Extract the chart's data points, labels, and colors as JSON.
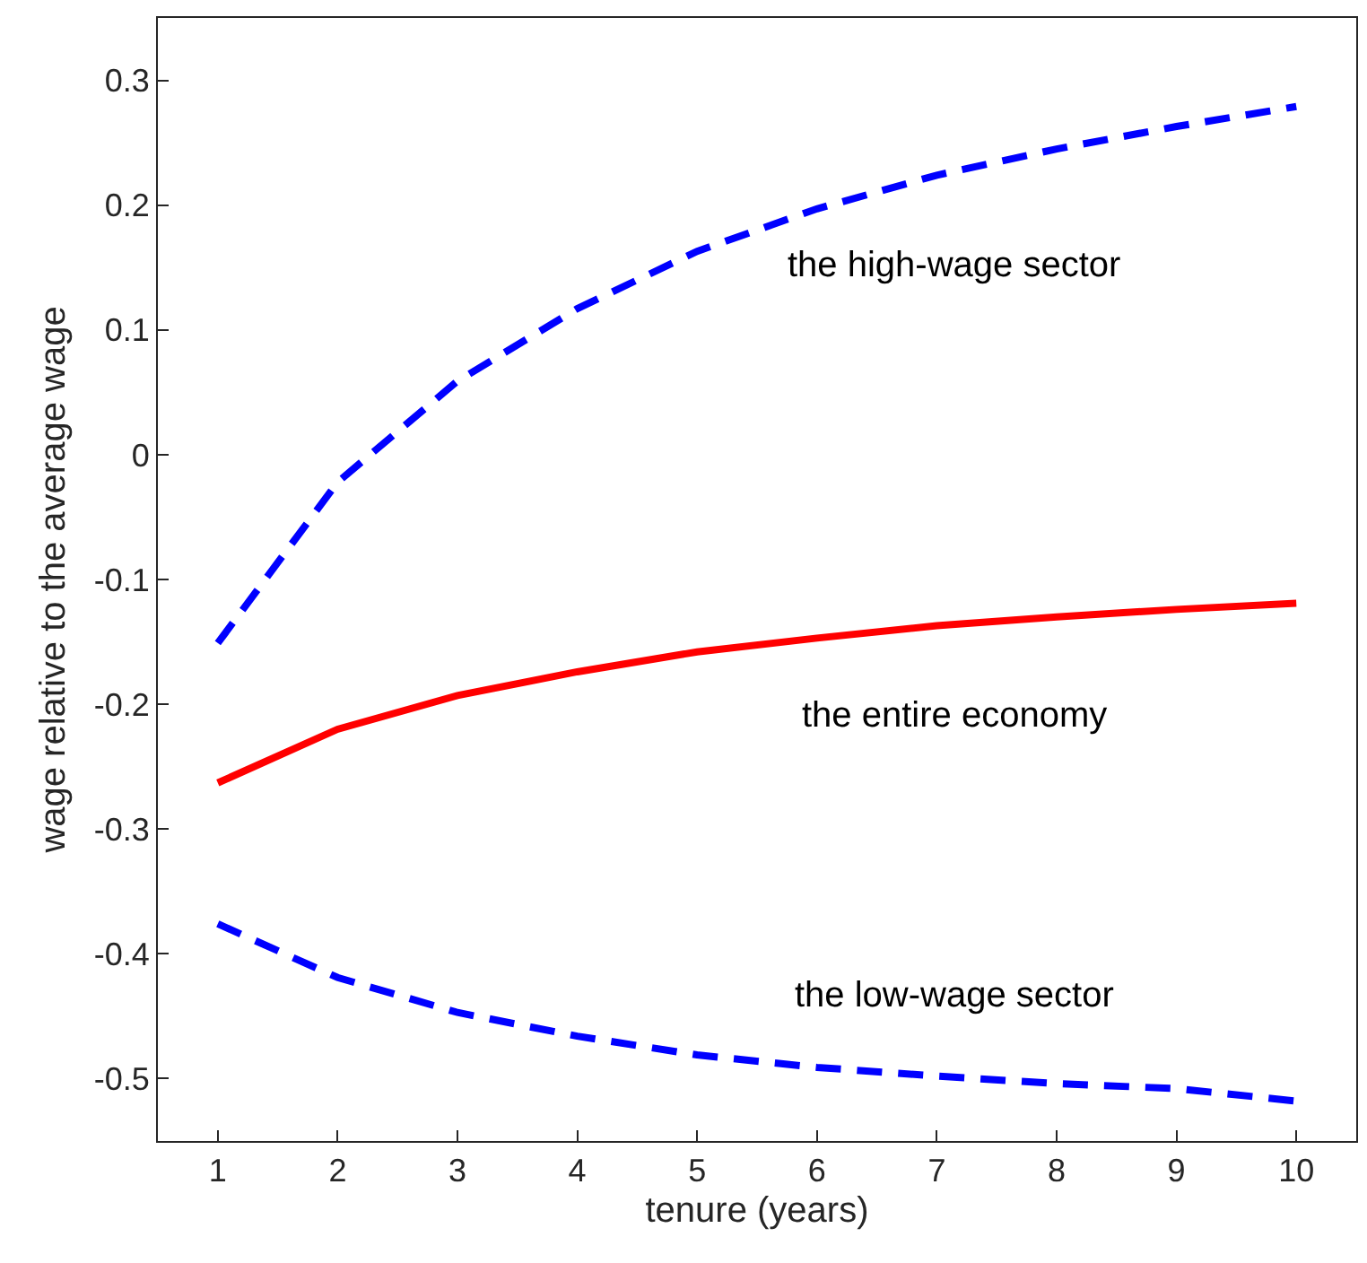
{
  "chart_data": {
    "type": "line",
    "xlabel": "tenure (years)",
    "ylabel": "wage relative to the average wage",
    "x": [
      1,
      2,
      3,
      4,
      5,
      6,
      7,
      8,
      9,
      10
    ],
    "series": [
      {
        "name": "the high-wage sector",
        "color": "#0000ff",
        "line_style": "dashed",
        "values": [
          -0.151,
          -0.022,
          0.059,
          0.117,
          0.163,
          0.197,
          0.224,
          0.245,
          0.263,
          0.279
        ]
      },
      {
        "name": "the entire economy",
        "color": "#ff0000",
        "line_style": "solid",
        "values": [
          -0.263,
          -0.22,
          -0.193,
          -0.174,
          -0.158,
          -0.147,
          -0.137,
          -0.13,
          -0.124,
          -0.119
        ]
      },
      {
        "name": "the low-wage sector",
        "color": "#0000ff",
        "line_style": "dashed",
        "values": [
          -0.376,
          -0.419,
          -0.447,
          -0.466,
          -0.481,
          -0.491,
          -0.498,
          -0.504,
          -0.508,
          -0.518
        ]
      }
    ],
    "xlim": [
      0.5,
      10.5
    ],
    "xticks": [
      1,
      2,
      3,
      4,
      5,
      6,
      7,
      8,
      9,
      10
    ],
    "ylim": [
      -0.55,
      0.35
    ],
    "yticks": [
      -0.5,
      -0.4,
      -0.3,
      -0.2,
      -0.1,
      0,
      0.1,
      0.2,
      0.3
    ],
    "legend": false
  }
}
